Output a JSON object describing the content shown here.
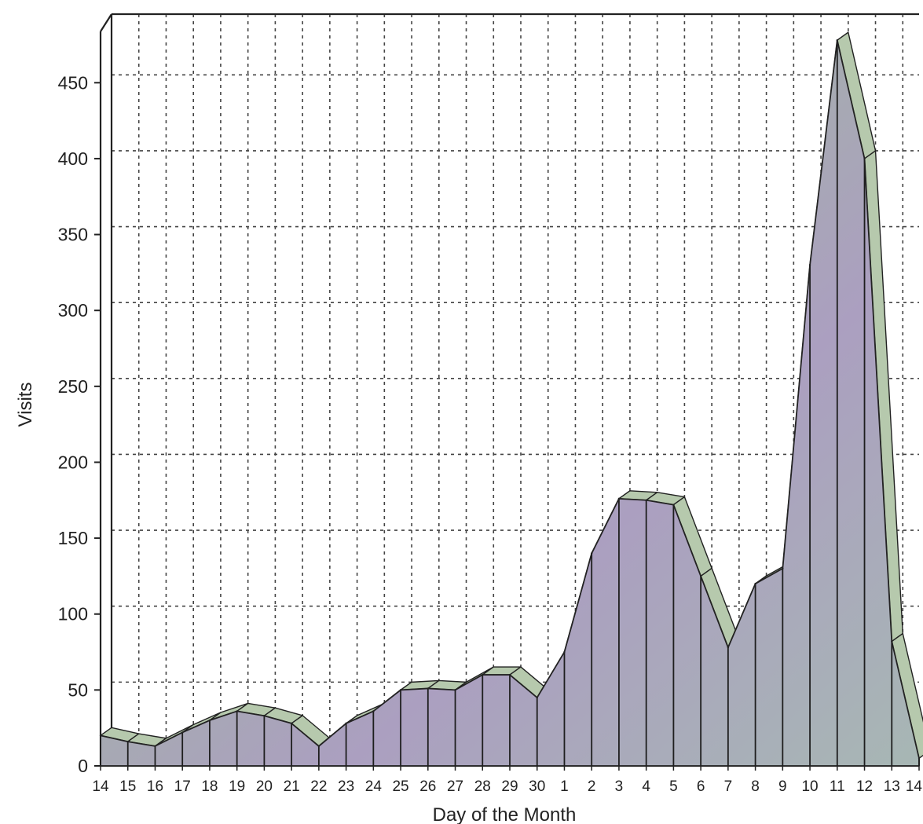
{
  "chart_data": {
    "type": "area",
    "title": "",
    "xlabel": "Day of the Month",
    "ylabel": "Visits",
    "ylim": [
      0,
      490
    ],
    "yticks": [
      0,
      50,
      100,
      150,
      200,
      250,
      300,
      350,
      400,
      450
    ],
    "grid": true,
    "categories": [
      "14",
      "15",
      "16",
      "17",
      "18",
      "19",
      "20",
      "21",
      "22",
      "23",
      "24",
      "25",
      "26",
      "27",
      "28",
      "29",
      "30",
      "1",
      "2",
      "3",
      "4",
      "5",
      "6",
      "7",
      "8",
      "9",
      "10",
      "11",
      "12",
      "13",
      "14"
    ],
    "series": [
      {
        "name": "",
        "values": [
          20,
          16,
          13,
          22,
          30,
          36,
          33,
          28,
          13,
          28,
          36,
          50,
          51,
          50,
          60,
          60,
          45,
          75,
          140,
          176,
          175,
          172,
          125,
          78,
          120,
          130,
          330,
          478,
          400,
          82,
          5
        ]
      }
    ],
    "colors": {
      "fill": "#a9a4c2",
      "top_face": "#b6c9ad",
      "grid": "#444444",
      "outline": "#222222"
    }
  }
}
